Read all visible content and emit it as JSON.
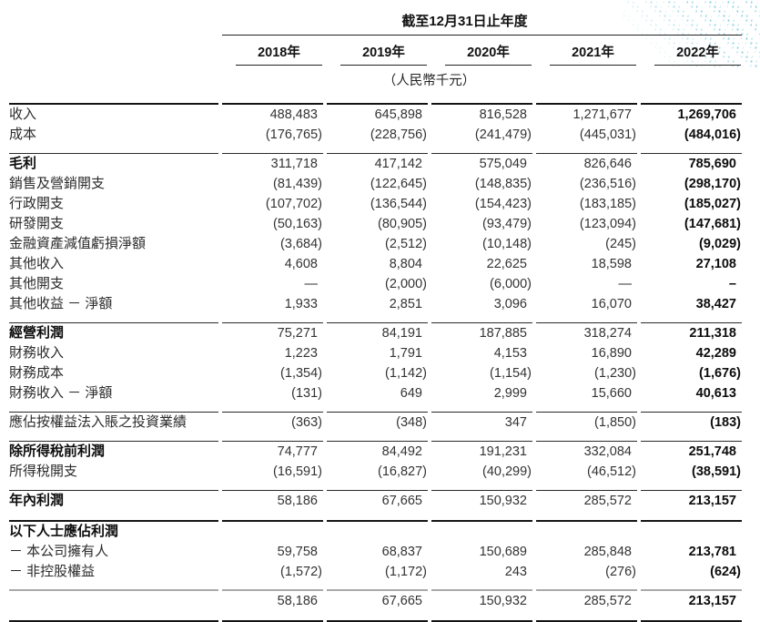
{
  "header": {
    "period_title": "截至12月31日止年度",
    "unit_note": "（人民幣千元）",
    "years": [
      "2018年",
      "2019年",
      "2020年",
      "2021年",
      "2022年"
    ]
  },
  "decor": {
    "dot_color": "#97d6e6"
  },
  "table": {
    "sections": [
      {
        "divider_after": "thin",
        "rows": [
          {
            "label": "收入",
            "bold": false,
            "values": [
              "488,483",
              "645,898",
              "816,528",
              "1,271,677",
              "1,269,706"
            ]
          },
          {
            "label": "成本",
            "bold": false,
            "values": [
              "(176,765)",
              "(228,756)",
              "(241,479)",
              "(445,031)",
              "(484,016)"
            ]
          }
        ]
      },
      {
        "divider_after": "thin",
        "rows": [
          {
            "label": "毛利",
            "bold": true,
            "values": [
              "311,718",
              "417,142",
              "575,049",
              "826,646",
              "785,690"
            ]
          },
          {
            "label": "銷售及營銷開支",
            "bold": false,
            "values": [
              "(81,439)",
              "(122,645)",
              "(148,835)",
              "(236,516)",
              "(298,170)"
            ]
          },
          {
            "label": "行政開支",
            "bold": false,
            "values": [
              "(107,702)",
              "(136,544)",
              "(154,423)",
              "(183,185)",
              "(185,027)"
            ]
          },
          {
            "label": "研發開支",
            "bold": false,
            "values": [
              "(50,163)",
              "(80,905)",
              "(93,479)",
              "(123,094)",
              "(147,681)"
            ]
          },
          {
            "label": "金融資產減值虧損淨額",
            "bold": false,
            "values": [
              "(3,684)",
              "(2,512)",
              "(10,148)",
              "(245)",
              "(9,029)"
            ]
          },
          {
            "label": "其他收入",
            "bold": false,
            "values": [
              "4,608",
              "8,804",
              "22,625",
              "18,598",
              "27,108"
            ]
          },
          {
            "label": "其他開支",
            "bold": false,
            "values": [
              "—",
              "(2,000)",
              "(6,000)",
              "—",
              "–"
            ]
          },
          {
            "label": "其他收益 － 淨額",
            "bold": false,
            "values": [
              "1,933",
              "2,851",
              "3,096",
              "16,070",
              "38,427"
            ]
          }
        ]
      },
      {
        "divider_after": "thin",
        "rows": [
          {
            "label": "經營利潤",
            "bold": true,
            "values": [
              "75,271",
              "84,191",
              "187,885",
              "318,274",
              "211,318"
            ]
          },
          {
            "label": "財務收入",
            "bold": false,
            "values": [
              "1,223",
              "1,791",
              "4,153",
              "16,890",
              "42,289"
            ]
          },
          {
            "label": "財務成本",
            "bold": false,
            "values": [
              "(1,354)",
              "(1,142)",
              "(1,154)",
              "(1,230)",
              "(1,676)"
            ]
          },
          {
            "label": "財務收入 － 淨額",
            "bold": false,
            "values": [
              "(131)",
              "649",
              "2,999",
              "15,660",
              "40,613"
            ]
          }
        ]
      },
      {
        "divider_after": "thin",
        "rows": [
          {
            "label": "應佔按權益法入賬之投資業績",
            "bold": false,
            "values": [
              "(363)",
              "(348)",
              "347",
              "(1,850)",
              "(183)"
            ]
          }
        ]
      },
      {
        "divider_after": "thin",
        "rows": [
          {
            "label": "除所得稅前利潤",
            "bold": true,
            "values": [
              "74,777",
              "84,492",
              "191,231",
              "332,084",
              "251,748"
            ]
          },
          {
            "label": "所得稅開支",
            "bold": false,
            "values": [
              "(16,591)",
              "(16,827)",
              "(40,299)",
              "(46,512)",
              "(38,591)"
            ]
          }
        ]
      },
      {
        "divider_after": "thick",
        "rows": [
          {
            "label": "年內利潤",
            "bold": true,
            "values": [
              "58,186",
              "67,665",
              "150,932",
              "285,572",
              "213,157"
            ]
          }
        ]
      },
      {
        "divider_after": "gray",
        "rows": [
          {
            "label": "以下人士應佔利潤",
            "bold": true,
            "values": [
              "",
              "",
              "",
              "",
              ""
            ]
          },
          {
            "label": "－ 本公司擁有人",
            "bold": false,
            "values": [
              "59,758",
              "68,837",
              "150,689",
              "285,848",
              "213,781"
            ]
          },
          {
            "label": "－ 非控股權益",
            "bold": false,
            "values": [
              "(1,572)",
              "(1,172)",
              "243",
              "(276)",
              "(624)"
            ]
          }
        ]
      },
      {
        "divider_after": "thick",
        "rows": [
          {
            "label": "",
            "bold": false,
            "values": [
              "58,186",
              "67,665",
              "150,932",
              "285,572",
              "213,157"
            ]
          }
        ]
      }
    ]
  }
}
